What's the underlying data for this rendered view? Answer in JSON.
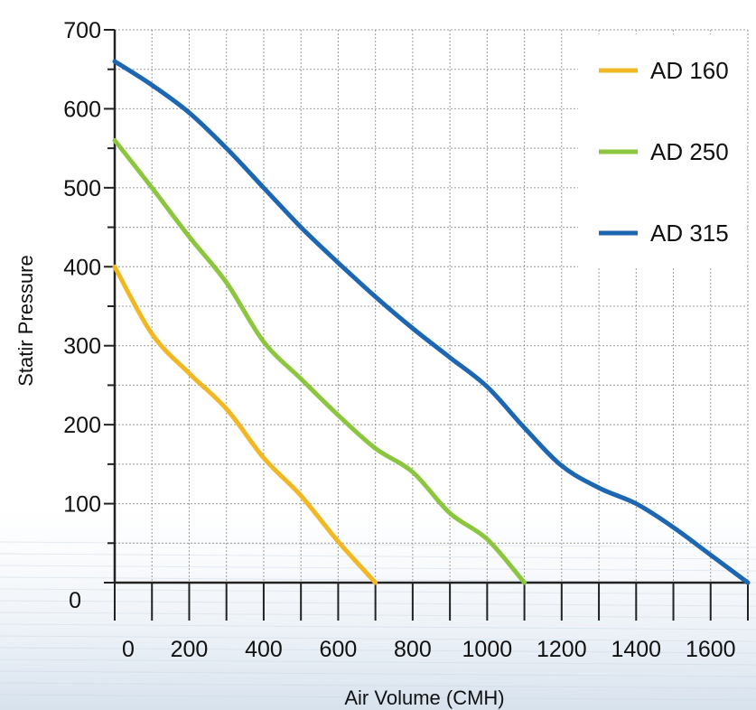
{
  "chart_data": {
    "type": "line",
    "xlabel": "Air Volume (CMH)",
    "ylabel": "Statir Pressure",
    "xlim": [
      0,
      1700
    ],
    "ylim": [
      0,
      700
    ],
    "x_ticks": [
      "0",
      "200",
      "400",
      "600",
      "800",
      "1000",
      "1200",
      "1400",
      "1600"
    ],
    "x_tick_values": [
      0,
      200,
      400,
      600,
      800,
      1000,
      1200,
      1400,
      1600
    ],
    "y_ticks": [
      "0",
      "100",
      "200",
      "300",
      "400",
      "500",
      "600",
      "700"
    ],
    "y_tick_values": [
      0,
      100,
      200,
      300,
      400,
      500,
      600,
      700
    ],
    "grid": true,
    "legend_position": "top-right",
    "series": [
      {
        "name": "AD 160",
        "color": "#f2b824",
        "points": [
          [
            0,
            400
          ],
          [
            100,
            315
          ],
          [
            200,
            265
          ],
          [
            300,
            220
          ],
          [
            400,
            158
          ],
          [
            500,
            110
          ],
          [
            600,
            52
          ],
          [
            700,
            0
          ]
        ]
      },
      {
        "name": "AD 250",
        "color": "#8cc63f",
        "points": [
          [
            0,
            560
          ],
          [
            100,
            500
          ],
          [
            200,
            438
          ],
          [
            300,
            380
          ],
          [
            400,
            305
          ],
          [
            500,
            258
          ],
          [
            600,
            212
          ],
          [
            700,
            170
          ],
          [
            800,
            140
          ],
          [
            900,
            88
          ],
          [
            1000,
            55
          ],
          [
            1100,
            0
          ]
        ]
      },
      {
        "name": "AD 315",
        "color": "#1c66b2",
        "points": [
          [
            0,
            660
          ],
          [
            100,
            630
          ],
          [
            200,
            595
          ],
          [
            300,
            550
          ],
          [
            400,
            500
          ],
          [
            500,
            450
          ],
          [
            600,
            405
          ],
          [
            700,
            362
          ],
          [
            800,
            322
          ],
          [
            900,
            285
          ],
          [
            1000,
            248
          ],
          [
            1100,
            196
          ],
          [
            1200,
            148
          ],
          [
            1300,
            120
          ],
          [
            1400,
            100
          ],
          [
            1500,
            70
          ],
          [
            1600,
            35
          ],
          [
            1700,
            0
          ]
        ]
      }
    ]
  }
}
